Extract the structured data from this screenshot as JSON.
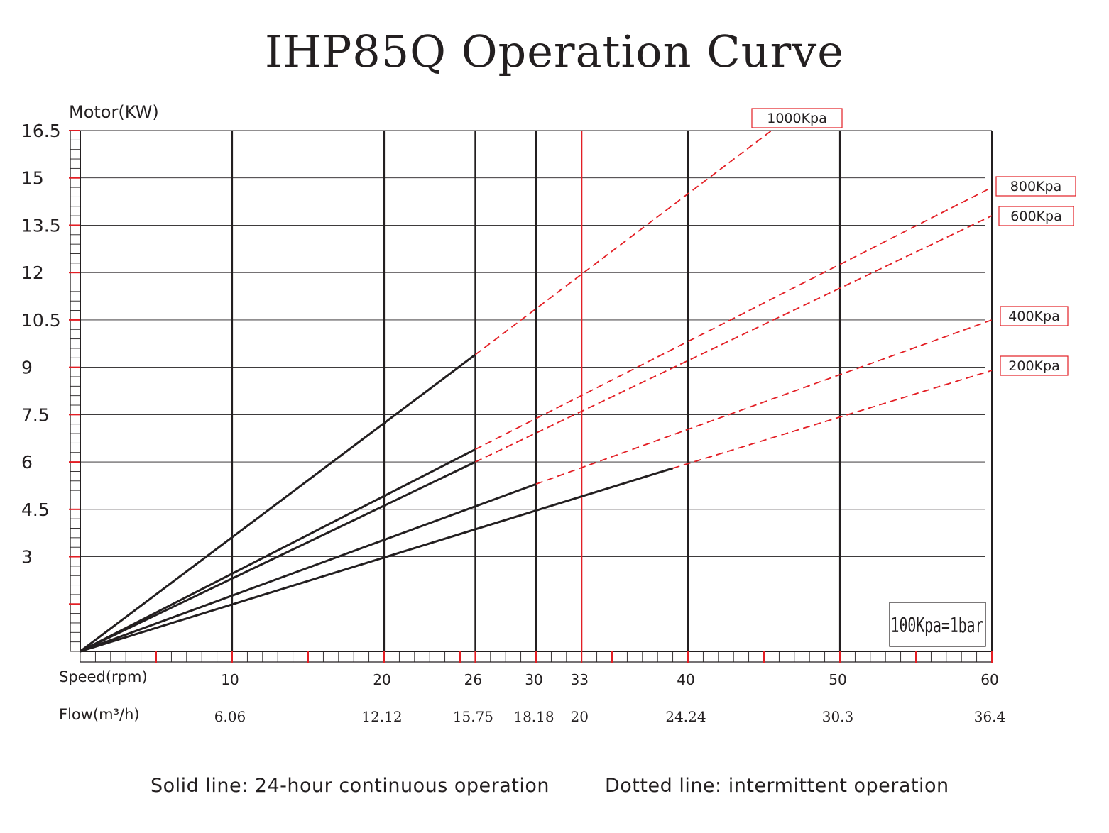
{
  "title": "IHP85Q Operation Curve",
  "legend": {
    "solid": "Solid line: 24-hour continuous operation",
    "dotted": "Dotted line: intermittent operation"
  },
  "note": "100Kpa=1bar",
  "colors": {
    "ink": "#231f20",
    "accent": "#e31e24"
  },
  "chart_data": {
    "type": "line",
    "title": "IHP85Q Operation Curve",
    "ylabel": "Motor(KW)",
    "xlabel": "Speed(rpm)",
    "x2label": "Flow(m³/h)",
    "xlim": [
      0,
      60
    ],
    "ylim": [
      0,
      16.5
    ],
    "y_ticks": [
      3,
      4.5,
      6,
      7.5,
      9,
      10.5,
      12,
      13.5,
      15,
      16.5
    ],
    "y_tick_labels": [
      "3",
      "4.5",
      "6",
      "7.5",
      "9",
      "10.5",
      "12",
      "13.5",
      "15",
      "16.5"
    ],
    "speed_ticks": [
      10,
      20,
      26,
      30,
      33,
      40,
      50,
      60
    ],
    "speed_tick_labels": [
      "10",
      "20",
      "26",
      "30",
      "33",
      "40",
      "50",
      "60"
    ],
    "flow_tick_labels": [
      "6.06",
      "12.12",
      "15.75",
      "18.18",
      "20",
      "24.24",
      "30.3",
      "36.4"
    ],
    "highlight_speed": 33,
    "grid": true,
    "series": [
      {
        "name": "1000Kpa",
        "solid": [
          [
            0,
            0
          ],
          [
            26,
            9.4
          ]
        ],
        "dashed": [
          [
            26,
            9.4
          ],
          [
            45.5,
            16.5
          ]
        ]
      },
      {
        "name": "800Kpa",
        "solid": [
          [
            0,
            0
          ],
          [
            26,
            6.4
          ]
        ],
        "dashed": [
          [
            26,
            6.4
          ],
          [
            60,
            14.7
          ]
        ]
      },
      {
        "name": "600Kpa",
        "solid": [
          [
            0,
            0
          ],
          [
            26,
            6.0
          ]
        ],
        "dashed": [
          [
            26,
            6.0
          ],
          [
            60,
            13.8
          ]
        ]
      },
      {
        "name": "400Kpa",
        "solid": [
          [
            0,
            0
          ],
          [
            30,
            5.3
          ]
        ],
        "dashed": [
          [
            30,
            5.3
          ],
          [
            60,
            10.5
          ]
        ]
      },
      {
        "name": "200Kpa",
        "solid": [
          [
            0,
            0
          ],
          [
            39,
            5.8
          ]
        ],
        "dashed": [
          [
            39,
            5.8
          ],
          [
            60,
            8.9
          ]
        ]
      }
    ]
  }
}
